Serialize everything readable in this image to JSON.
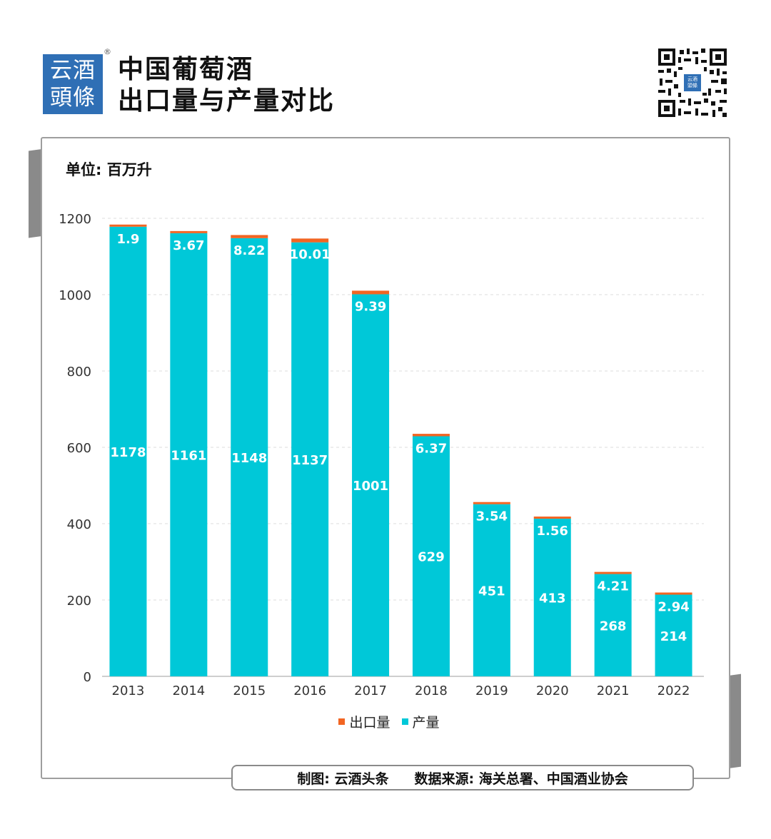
{
  "brand": {
    "logo_line1": "云酒",
    "logo_line2": "頭條",
    "registered_mark": "®"
  },
  "header": {
    "title_line1": "中国葡萄酒",
    "title_line2": "出口量与产量对比"
  },
  "qr": {
    "center_line1": "云酒",
    "center_line2": "頭條"
  },
  "unit_label": "单位: 百万升",
  "footer": {
    "credit": "制图: 云酒头条",
    "source": "数据来源: 海关总署、中国酒业协会"
  },
  "colors": {
    "production": "#00c8d8",
    "export": "#f26522",
    "brand_blue": "#2f6fb5"
  },
  "chart_data": {
    "type": "bar",
    "stacked": true,
    "categories": [
      "2013",
      "2014",
      "2015",
      "2016",
      "2017",
      "2018",
      "2019",
      "2020",
      "2021",
      "2022"
    ],
    "series": [
      {
        "name": "产量",
        "color": "#00c8d8",
        "values": [
          1178,
          1161,
          1148,
          1137,
          1001,
          629,
          451,
          413,
          268,
          214
        ]
      },
      {
        "name": "出口量",
        "color": "#f26522",
        "values": [
          1.9,
          3.67,
          8.22,
          10.01,
          9.39,
          6.37,
          3.54,
          1.56,
          4.21,
          2.94
        ]
      }
    ],
    "legend": [
      "出口量",
      "产量"
    ],
    "legend_position": "bottom",
    "yticks": [
      0,
      200,
      400,
      600,
      800,
      1000,
      1200
    ],
    "ylim": [
      0,
      1200
    ],
    "grid": "horizontal-dashed"
  }
}
